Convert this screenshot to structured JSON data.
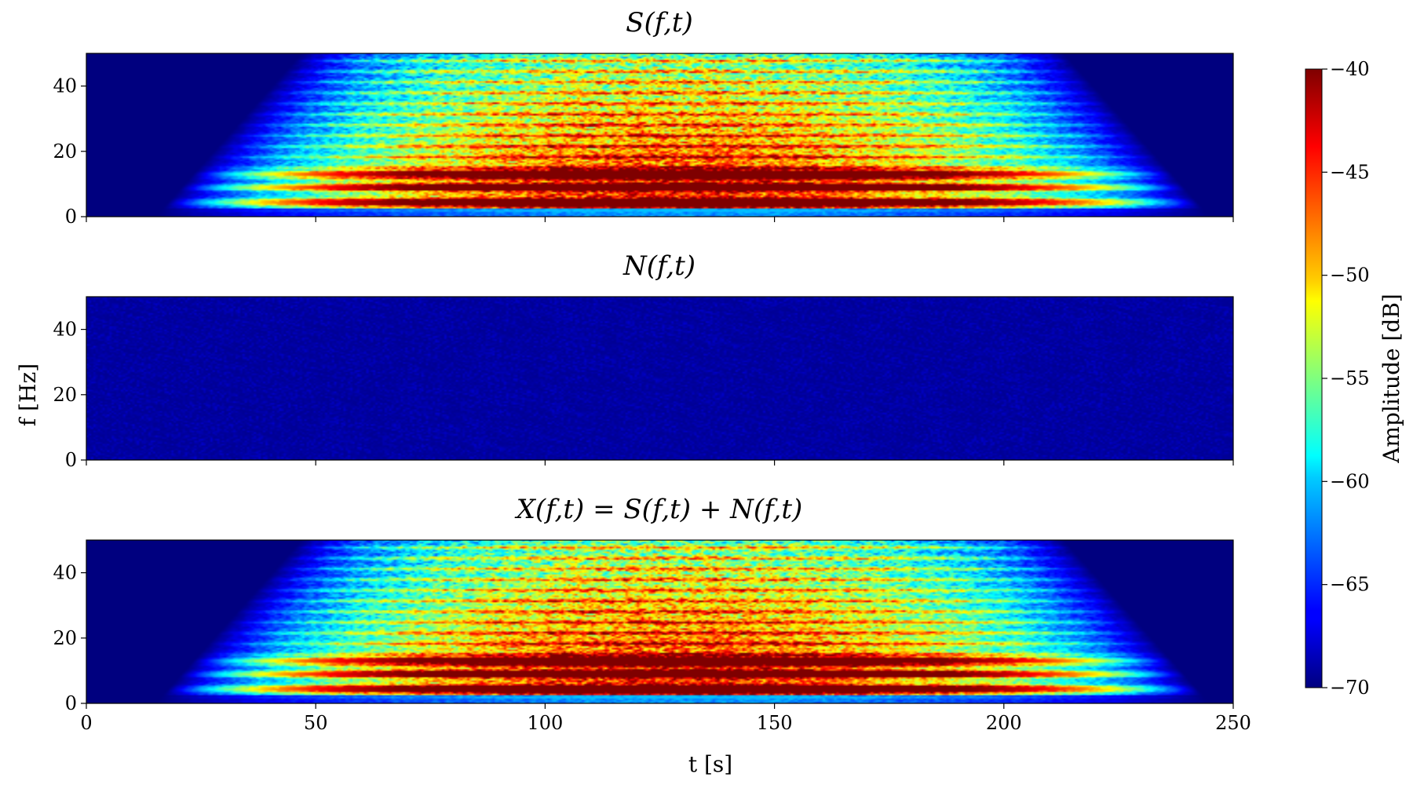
{
  "chart_data": {
    "type": "heatmap",
    "panels": [
      {
        "title": "S(f,t)",
        "description_values": "signal spectrogram: strong tonal bands near 4, 9, 13 Hz plus broadband energy up to 50 Hz, active roughly 10–240 s",
        "ylim": [
          0,
          50
        ],
        "xlim": [
          0,
          250
        ],
        "yticks": [
          "0",
          "20",
          "40"
        ],
        "noise_level": "signal"
      },
      {
        "title": "N(f,t)",
        "ylim": [
          0,
          50
        ],
        "xlim": [
          0,
          250
        ],
        "yticks": [
          "0",
          "20",
          "40"
        ],
        "noise_level": "noise"
      },
      {
        "title": "X(f,t) = S(f,t) + N(f,t)",
        "ylim": [
          0,
          50
        ],
        "xlim": [
          0,
          250
        ],
        "yticks": [
          "0",
          "20",
          "40"
        ],
        "noise_level": "signal"
      }
    ],
    "xticks": [
      "0",
      "50",
      "100",
      "150",
      "200",
      "250"
    ],
    "xlabel": "t [s]",
    "ylabel": "f [Hz]",
    "colorbar": {
      "label": "Amplitude [dB]",
      "range": [
        -70,
        -40
      ],
      "ticks": [
        "−40",
        "−45",
        "−50",
        "−55",
        "−60",
        "−65",
        "−70"
      ],
      "colormap": "jet"
    },
    "bands_hz": [
      4,
      9,
      13
    ],
    "active_interval_s": [
      10,
      240
    ]
  }
}
